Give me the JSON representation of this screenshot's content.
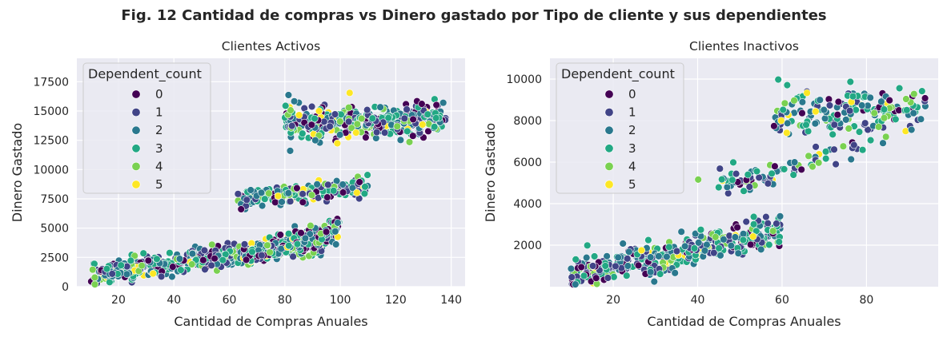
{
  "figure": {
    "suptitle": "Fig. 12 Cantidad de compras vs Dinero gastado por Tipo de cliente y sus dependientes"
  },
  "palette": {
    "plot_bg": "#eaeaf2",
    "grid": "#ffffff",
    "text": "#262626",
    "hue_colors": [
      "#440154",
      "#414487",
      "#2a788e",
      "#22a884",
      "#7ad151",
      "#fde725"
    ]
  },
  "chart_data": [
    {
      "type": "scatter",
      "title": "Clientes Activos",
      "xlabel": "Cantidad de Compras Anuales",
      "ylabel": "Dinero Gastado",
      "xlim": [
        5,
        145
      ],
      "ylim": [
        0,
        19500
      ],
      "xticks": [
        20,
        40,
        60,
        80,
        100,
        120,
        140
      ],
      "yticks": [
        0,
        2500,
        5000,
        7500,
        10000,
        12500,
        15000,
        17500
      ],
      "grid": true,
      "legend": {
        "title": "Dependent_count",
        "placement": "top-left",
        "entries": [
          "0",
          "1",
          "2",
          "3",
          "4",
          "5"
        ]
      },
      "clusters": [
        {
          "x_range": [
            10,
            95
          ],
          "y_at_x_min": 1000,
          "y_at_x_max": 3800,
          "y_spread": 1400,
          "n_points": 520
        },
        {
          "x_range": [
            65,
            100
          ],
          "y_at_x_min": 2600,
          "y_at_x_max": 5000,
          "y_spread": 1400,
          "n_points": 240
        },
        {
          "x_range": [
            63,
            110
          ],
          "y_at_x_min": 7500,
          "y_at_x_max": 8600,
          "y_spread": 1200,
          "n_points": 220
        },
        {
          "x_range": [
            80,
            138
          ],
          "y_at_x_min": 14000,
          "y_at_x_max": 14300,
          "y_spread": 2200,
          "n_points": 360
        }
      ]
    },
    {
      "type": "scatter",
      "title": "Clientes Inactivos",
      "xlabel": "Cantidad de Compras Anuales",
      "ylabel": "Dinero Gastado",
      "xlim": [
        5,
        97
      ],
      "ylim": [
        0,
        11000
      ],
      "xticks": [
        20,
        40,
        60,
        80
      ],
      "yticks": [
        2000,
        4000,
        6000,
        8000,
        10000
      ],
      "grid": true,
      "legend": {
        "title": "Dependent_count",
        "placement": "top-left",
        "entries": [
          "0",
          "1",
          "2",
          "3",
          "4",
          "5"
        ]
      },
      "clusters": [
        {
          "x_range": [
            10,
            60
          ],
          "y_at_x_min": 600,
          "y_at_x_max": 2600,
          "y_spread": 1100,
          "n_points": 420
        },
        {
          "x_range": [
            46,
            58
          ],
          "y_at_x_min": 4700,
          "y_at_x_max": 5200,
          "y_spread": 600,
          "n_points": 30
        },
        {
          "x_range": [
            40,
            80
          ],
          "y_at_x_min": 4800,
          "y_at_x_max": 6800,
          "y_spread": 900,
          "n_points": 50
        },
        {
          "x_range": [
            58,
            94
          ],
          "y_at_x_min": 8200,
          "y_at_x_max": 8600,
          "y_spread": 1800,
          "n_points": 180
        }
      ]
    }
  ]
}
